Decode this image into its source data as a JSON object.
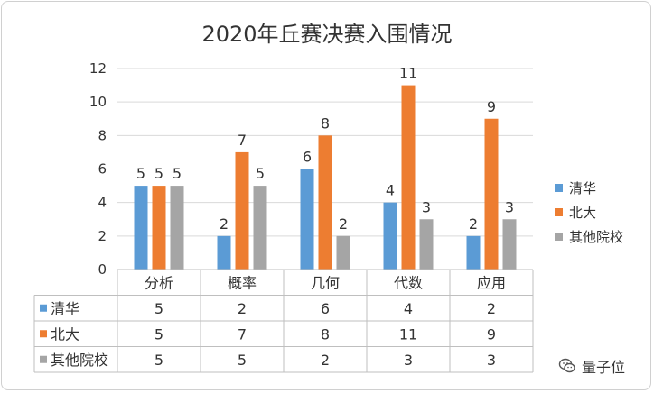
{
  "chart_data": {
    "type": "bar",
    "title": "2020年丘赛决赛入围情况",
    "categories": [
      "分析",
      "概率",
      "几何",
      "代数",
      "应用"
    ],
    "series": [
      {
        "name": "清华",
        "color": "#5b9bd5",
        "values": [
          5,
          2,
          6,
          4,
          2
        ]
      },
      {
        "name": "北大",
        "color": "#ed7d31",
        "values": [
          5,
          7,
          8,
          11,
          9
        ]
      },
      {
        "name": "其他院校",
        "color": "#a5a5a5",
        "values": [
          5,
          5,
          2,
          3,
          3
        ]
      }
    ],
    "ylim": [
      0,
      12
    ],
    "yticks": [
      0,
      2,
      4,
      6,
      8,
      10,
      12
    ],
    "grid": true,
    "legend": "right",
    "data_table": true
  },
  "watermark": {
    "text": "量子位",
    "icon": "wechat-icon"
  }
}
